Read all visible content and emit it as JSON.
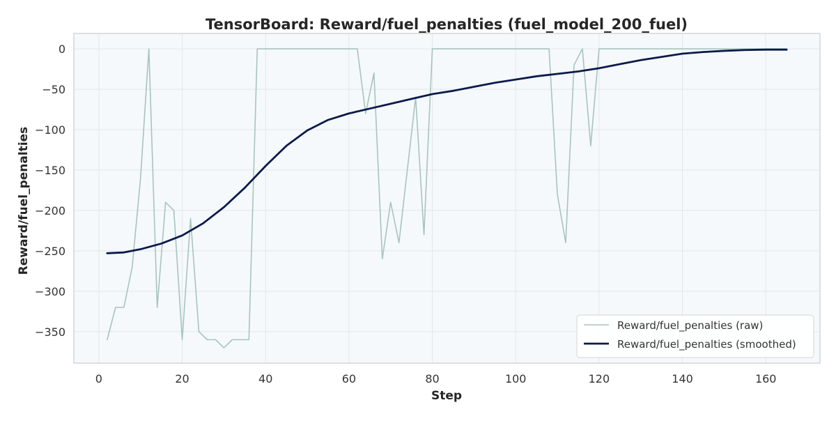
{
  "chart_data": {
    "type": "line",
    "title": "TensorBoard: Reward/fuel_penalties (fuel_model_200_fuel)",
    "xlabel": "Step",
    "ylabel": "Reward/fuel_penalties",
    "xlim": [
      -6,
      173
    ],
    "ylim": [
      -389,
      19
    ],
    "xticks": [
      0,
      20,
      40,
      60,
      80,
      100,
      120,
      140,
      160
    ],
    "yticks": [
      0,
      -50,
      -100,
      -150,
      -200,
      -250,
      -300,
      -350
    ],
    "xtick_labels": [
      "0",
      "20",
      "40",
      "60",
      "80",
      "100",
      "120",
      "140",
      "160"
    ],
    "ytick_labels": [
      "0",
      "−50",
      "−100",
      "−150",
      "−200",
      "−250",
      "−300",
      "−350"
    ],
    "grid": true,
    "legend_position": "lower-right",
    "series": [
      {
        "name": "Reward/fuel_penalties (raw)",
        "color": "#a8c4bc",
        "points": [
          [
            2,
            -360
          ],
          [
            4,
            -320
          ],
          [
            6,
            -320
          ],
          [
            8,
            -270
          ],
          [
            10,
            -160
          ],
          [
            12,
            0
          ],
          [
            14,
            -320
          ],
          [
            16,
            -190
          ],
          [
            18,
            -200
          ],
          [
            20,
            -360
          ],
          [
            22,
            -210
          ],
          [
            24,
            -350
          ],
          [
            26,
            -360
          ],
          [
            28,
            -360
          ],
          [
            30,
            -370
          ],
          [
            32,
            -360
          ],
          [
            34,
            -360
          ],
          [
            36,
            -360
          ],
          [
            38,
            0
          ],
          [
            40,
            0
          ],
          [
            62,
            0
          ],
          [
            64,
            -80
          ],
          [
            66,
            -30
          ],
          [
            68,
            -260
          ],
          [
            70,
            -190
          ],
          [
            72,
            -240
          ],
          [
            74,
            -150
          ],
          [
            76,
            -60
          ],
          [
            78,
            -230
          ],
          [
            80,
            0
          ],
          [
            108,
            0
          ],
          [
            110,
            -180
          ],
          [
            112,
            -240
          ],
          [
            114,
            -20
          ],
          [
            116,
            0
          ],
          [
            118,
            -120
          ],
          [
            120,
            0
          ],
          [
            165,
            0
          ]
        ]
      },
      {
        "name": "Reward/fuel_penalties (smoothed)",
        "color": "#0b1a4a",
        "points": [
          [
            2,
            -253
          ],
          [
            6,
            -252
          ],
          [
            10,
            -248
          ],
          [
            15,
            -241
          ],
          [
            20,
            -231
          ],
          [
            25,
            -216
          ],
          [
            30,
            -196
          ],
          [
            35,
            -172
          ],
          [
            40,
            -145
          ],
          [
            45,
            -120
          ],
          [
            50,
            -101
          ],
          [
            55,
            -88
          ],
          [
            60,
            -80
          ],
          [
            65,
            -74
          ],
          [
            70,
            -68
          ],
          [
            75,
            -62
          ],
          [
            80,
            -56
          ],
          [
            85,
            -52
          ],
          [
            90,
            -47
          ],
          [
            95,
            -42
          ],
          [
            100,
            -38
          ],
          [
            105,
            -34
          ],
          [
            110,
            -31
          ],
          [
            115,
            -28
          ],
          [
            120,
            -24
          ],
          [
            125,
            -19
          ],
          [
            130,
            -14
          ],
          [
            135,
            -10
          ],
          [
            140,
            -6
          ],
          [
            145,
            -4
          ],
          [
            150,
            -2.5
          ],
          [
            155,
            -1.5
          ],
          [
            160,
            -1
          ],
          [
            165,
            -1
          ]
        ]
      }
    ]
  }
}
